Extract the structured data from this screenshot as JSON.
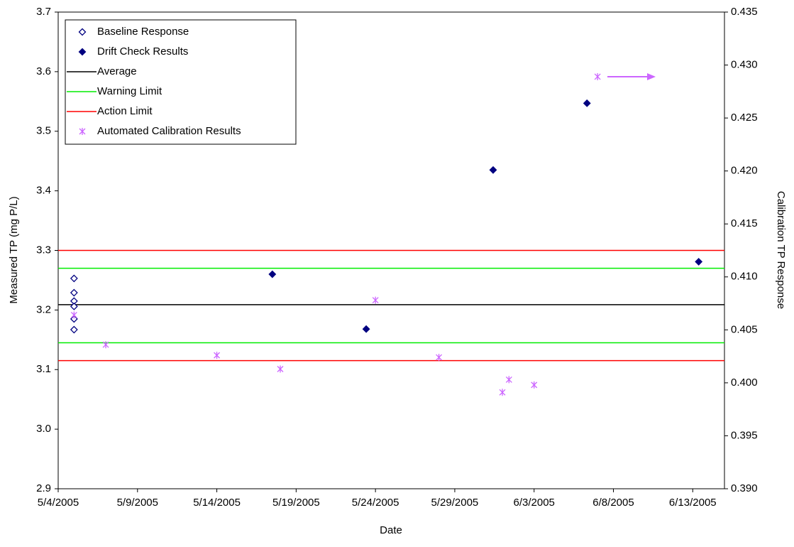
{
  "chart_data": {
    "type": "scatter",
    "xlabel": "Date",
    "ylabel": "Measured TP (mg P/L)",
    "y2label": "Calibration TP Response",
    "xlim": [
      "2005-05-04",
      "2005-06-15"
    ],
    "xticks": [
      {
        "value": "2005-05-04",
        "label": "5/4/2005"
      },
      {
        "value": "2005-05-09",
        "label": "5/9/2005"
      },
      {
        "value": "2005-05-14",
        "label": "5/14/2005"
      },
      {
        "value": "2005-05-19",
        "label": "5/19/2005"
      },
      {
        "value": "2005-05-24",
        "label": "5/24/2005"
      },
      {
        "value": "2005-05-29",
        "label": "5/29/2005"
      },
      {
        "value": "2005-06-03",
        "label": "6/3/2005"
      },
      {
        "value": "2005-06-08",
        "label": "6/8/2005"
      },
      {
        "value": "2005-06-13",
        "label": "6/13/2005"
      }
    ],
    "ylim": [
      2.9,
      3.7
    ],
    "yticks": [
      2.9,
      {
        "value": 3,
        "label": "3.0"
      },
      3.1,
      3.2,
      3.3,
      3.4,
      3.5,
      3.6,
      3.7
    ],
    "y2lim": [
      0.39,
      0.435
    ],
    "y2ticks": [
      {
        "value": 0.39,
        "label": "0.390"
      },
      0.395,
      {
        "value": 0.4,
        "label": "0.400"
      },
      0.405,
      {
        "value": 0.41,
        "label": "0.410"
      },
      0.415,
      {
        "value": 0.42,
        "label": "0.420"
      },
      0.425,
      {
        "value": 0.43,
        "label": "0.430"
      },
      0.435
    ],
    "legend": "upper left",
    "series": [
      {
        "name": "Baseline Response",
        "color": "#000080",
        "marker": "diamond-open",
        "x": [
          "2005-05-05",
          "2005-05-05",
          "2005-05-05",
          "2005-05-05",
          "2005-05-05",
          "2005-05-05"
        ],
        "values": [
          3.253,
          3.229,
          3.215,
          3.206,
          3.185,
          3.167
        ]
      },
      {
        "name": "Drift Check Results",
        "color": "#000080",
        "marker": "diamond",
        "x": [
          "2005-05-17T12:00",
          "2005-05-23T10:00",
          "2005-05-31T10:00",
          "2005-06-06T08:00",
          "2005-06-13T09:00"
        ],
        "values": [
          3.26,
          3.168,
          3.435,
          3.547,
          3.281
        ]
      },
      {
        "name": "Average",
        "color": "#000000",
        "marker": "line",
        "values": [
          3.209
        ]
      },
      {
        "name": "Warning Limit",
        "color": "#00ee00",
        "marker": "line",
        "values": [
          3.27,
          3.145
        ]
      },
      {
        "name": "Action Limit",
        "color": "#ff0000",
        "marker": "line",
        "values": [
          3.3,
          3.115
        ]
      },
      {
        "name": "Automated Calibration Results",
        "color": "#cc66ff",
        "marker": "star",
        "axis": "y2",
        "x": [
          "2005-05-05",
          "2005-05-07",
          "2005-05-14",
          "2005-05-18",
          "2005-05-24",
          "2005-05-28",
          "2005-06-01",
          "2005-06-01T10:00",
          "2005-06-03",
          "2005-06-07"
        ],
        "values": [
          0.4064,
          0.4036,
          0.4026,
          0.4013,
          0.4078,
          0.4024,
          0.3991,
          0.4003,
          0.3998,
          0.4289
        ]
      }
    ]
  }
}
